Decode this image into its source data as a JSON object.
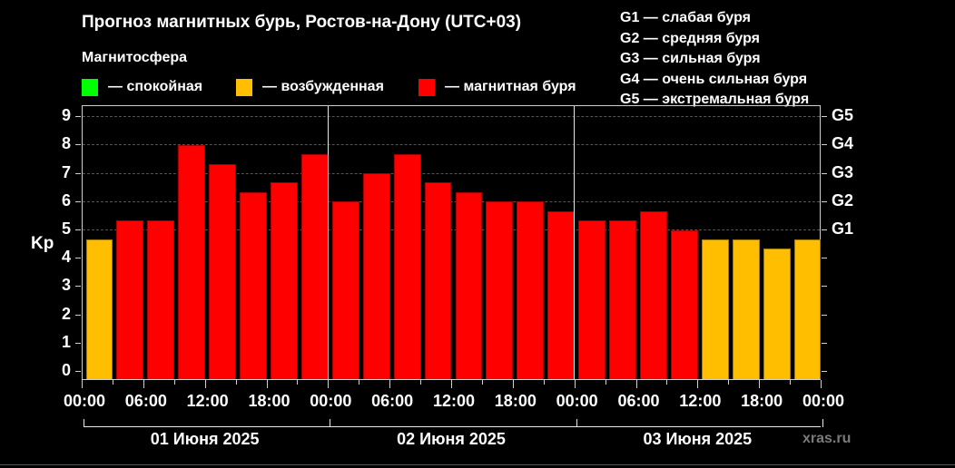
{
  "title": "Прогноз магнитных бурь, Ростов-на-Дону (UTC+03)",
  "magnetosphere_legend": {
    "heading": "Магнитосфера",
    "items": [
      {
        "label": "— спокойная",
        "color": "#00ff00"
      },
      {
        "label": "— возбужденная",
        "color": "#ffbf00"
      },
      {
        "label": "— магнитная буря",
        "color": "#ff0000"
      }
    ]
  },
  "g_legend": [
    "G1 — слабая буря",
    "G2 — средняя буря",
    "G3 — сильная буря",
    "G4 — очень сильная буря",
    "G5 — экстремальная буря"
  ],
  "watermark": "xras.ru",
  "chart_data": {
    "type": "bar",
    "title": "Прогноз магнитных бурь, Ростов-на-Дону (UTC+03)",
    "xlabel": "",
    "ylabel": "Kp",
    "ylim": [
      0,
      9
    ],
    "yticks": [
      0,
      1,
      2,
      3,
      4,
      5,
      6,
      7,
      8,
      9
    ],
    "right_axis": {
      "labels": [
        "G1",
        "G2",
        "G3",
        "G4",
        "G5"
      ],
      "positions": [
        5,
        6,
        7,
        8,
        9
      ]
    },
    "grid": "horizontal dashed at Kp 5-9",
    "interval_hours": 3,
    "xtick_labels": [
      "00:00",
      "06:00",
      "12:00",
      "18:00",
      "00:00",
      "06:00",
      "12:00",
      "18:00",
      "00:00",
      "06:00",
      "12:00",
      "18:00",
      "00:00"
    ],
    "days": [
      "01 Июня 2025",
      "02 Июня 2025",
      "03 Июня 2025"
    ],
    "categories": [
      "01.06 00-03",
      "01.06 03-06",
      "01.06 06-09",
      "01.06 09-12",
      "01.06 12-15",
      "01.06 15-18",
      "01.06 18-21",
      "01.06 21-24",
      "02.06 00-03",
      "02.06 03-06",
      "02.06 06-09",
      "02.06 09-12",
      "02.06 12-15",
      "02.06 15-18",
      "02.06 18-21",
      "02.06 21-24",
      "03.06 00-03",
      "03.06 03-06",
      "03.06 06-09",
      "03.06 09-12",
      "03.06 12-15",
      "03.06 15-18",
      "03.06 18-21",
      "03.06 21-24"
    ],
    "values": [
      4.67,
      5.33,
      5.33,
      8.0,
      7.33,
      6.33,
      6.67,
      7.67,
      6.0,
      7.0,
      7.67,
      6.67,
      6.33,
      6.0,
      6.0,
      5.67,
      5.33,
      5.33,
      5.67,
      5.0,
      4.67,
      4.67,
      4.33,
      4.67
    ],
    "bar_colors": [
      "#ffbf00",
      "#ff0000",
      "#ff0000",
      "#ff0000",
      "#ff0000",
      "#ff0000",
      "#ff0000",
      "#ff0000",
      "#ff0000",
      "#ff0000",
      "#ff0000",
      "#ff0000",
      "#ff0000",
      "#ff0000",
      "#ff0000",
      "#ff0000",
      "#ff0000",
      "#ff0000",
      "#ff0000",
      "#ff0000",
      "#ffbf00",
      "#ffbf00",
      "#ffbf00",
      "#ffbf00"
    ],
    "legend": [
      "спокойная",
      "возбужденная",
      "магнитная буря"
    ]
  }
}
